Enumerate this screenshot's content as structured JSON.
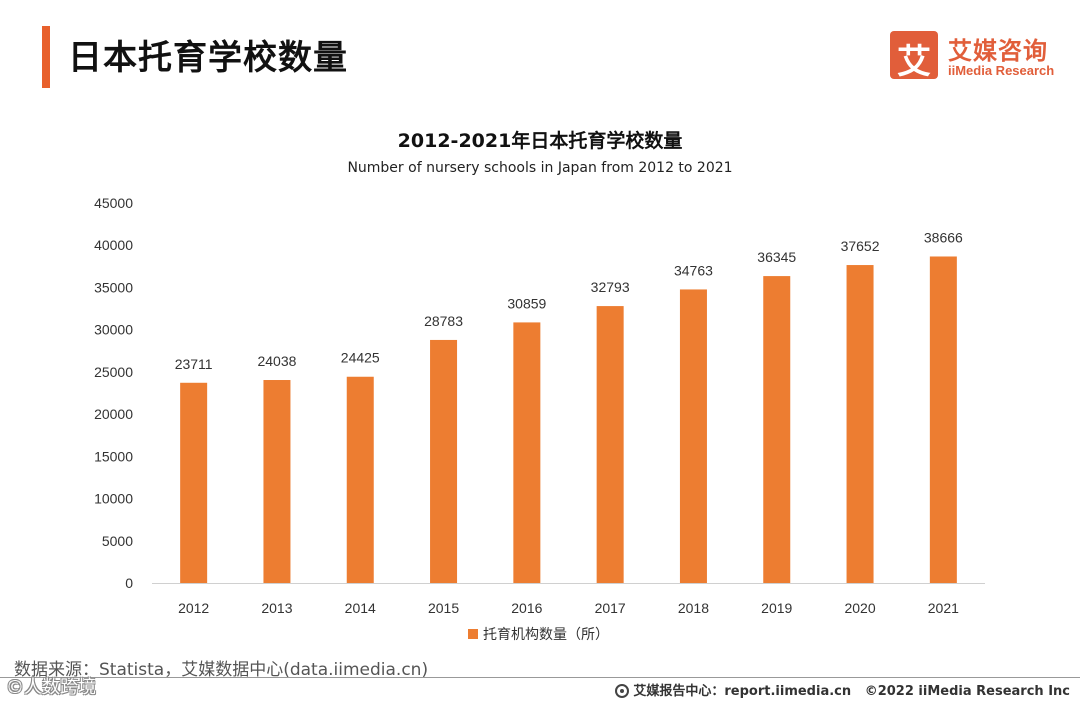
{
  "header": {
    "title": "日本托育学校数量"
  },
  "logo": {
    "box_glyph": "艾",
    "name_cn": "艾媒咨询",
    "name_en": "iiMedia Research"
  },
  "chart_data": {
    "type": "bar",
    "title": "2012-2021年日本托育学校数量",
    "subtitle": "Number of nursery schools in Japan from 2012 to 2021",
    "categories": [
      "2012",
      "2013",
      "2014",
      "2015",
      "2016",
      "2017",
      "2018",
      "2019",
      "2020",
      "2021"
    ],
    "series": [
      {
        "name": "托育机构数量（所）",
        "values": [
          23711,
          24038,
          24425,
          28783,
          30859,
          32793,
          34763,
          36345,
          37652,
          38666
        ],
        "color": "#ed7d31"
      }
    ],
    "yticks": [
      0,
      5000,
      10000,
      15000,
      20000,
      25000,
      30000,
      35000,
      40000,
      45000
    ],
    "ylim": [
      0,
      45000
    ],
    "xlabel": "",
    "ylabel": "",
    "legend_position": "bottom-center",
    "grid": false
  },
  "footer": {
    "source": "数据来源：Statista，艾媒数据中心(data.iimedia.cn)",
    "watermark": "©人数跨境",
    "report_center": "艾媒报告中心：report.iimedia.cn",
    "copyright": "©2022  iiMedia Research  Inc"
  }
}
